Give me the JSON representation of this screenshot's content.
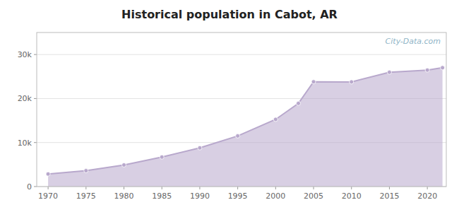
{
  "chart_data": {
    "type": "area",
    "title": "Historical population in Cabot, AR",
    "x": [
      1970,
      1975,
      1980,
      1985,
      1990,
      1995,
      2000,
      2003,
      2005,
      2010,
      2015,
      2020,
      2022
    ],
    "values": [
      2855,
      3600,
      4904,
      6700,
      8789,
      11500,
      15261,
      18900,
      23800,
      23776,
      25970,
      26461,
      27000
    ],
    "color": "#b8a8cc",
    "marker": "circle",
    "xlim": [
      1968.5,
      2022.5
    ],
    "xticks": [
      1970,
      1975,
      1980,
      1985,
      1990,
      1995,
      2000,
      2005,
      2010,
      2015,
      2020
    ],
    "ylim": [
      0,
      35000
    ],
    "yticks": [
      0,
      {
        "value": 10000,
        "label": "10k"
      },
      {
        "value": 20000,
        "label": "20k"
      },
      {
        "value": 30000,
        "label": "30k"
      }
    ],
    "grid": true,
    "annotations": [
      "City-Data.com"
    ]
  }
}
